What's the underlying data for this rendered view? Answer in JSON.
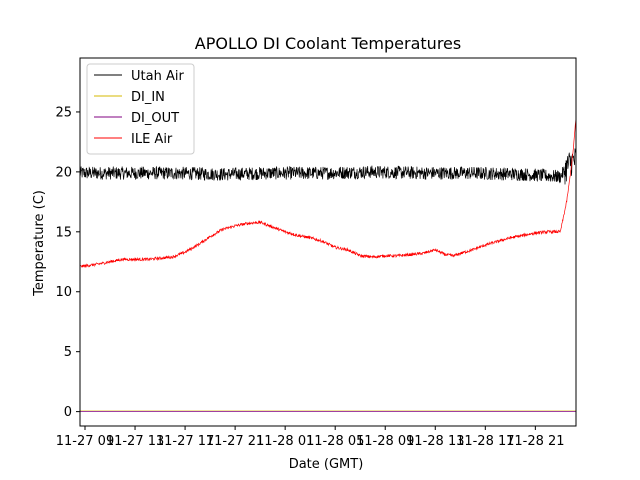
{
  "chart_data": {
    "type": "line",
    "title": "APOLLO DI Coolant Temperatures",
    "xlabel": "Date (GMT)",
    "ylabel": "Temperature (C)",
    "x_domain_hours": [
      6.6,
      46.25
    ],
    "ylim": [
      -1.2,
      29.5
    ],
    "yticks": [
      0,
      5,
      10,
      15,
      20,
      25
    ],
    "xticks": [
      {
        "h": 7,
        "label": "11-27 09"
      },
      {
        "h": 11,
        "label": "11-27 13"
      },
      {
        "h": 15,
        "label": "11-27 17"
      },
      {
        "h": 19,
        "label": "11-27 21"
      },
      {
        "h": 23,
        "label": "11-28 01"
      },
      {
        "h": 27,
        "label": "11-28 05"
      },
      {
        "h": 31,
        "label": "11-28 09"
      },
      {
        "h": 35,
        "label": "11-28 13"
      },
      {
        "h": 39,
        "label": "11-28 17"
      },
      {
        "h": 43,
        "label": "11-28 21"
      }
    ],
    "legend_position": "top-left",
    "series": [
      {
        "name": "Utah Air",
        "color": "#000000",
        "noise": 0.55,
        "x": [
          6.6,
          10,
          14,
          18,
          22,
          26,
          30,
          34,
          38,
          42,
          45.0,
          45.4,
          45.8,
          46.25
        ],
        "y": [
          19.9,
          19.9,
          19.9,
          19.8,
          19.9,
          19.9,
          20.0,
          19.9,
          19.9,
          19.8,
          19.6,
          20.2,
          20.8,
          21.0
        ]
      },
      {
        "name": "DI_IN",
        "color": "#d4b800",
        "noise": 0,
        "x": [
          6.6,
          46.25
        ],
        "y": [
          0.05,
          0.05
        ]
      },
      {
        "name": "DI_OUT",
        "color": "#800080",
        "noise": 0,
        "x": [
          6.6,
          46.25
        ],
        "y": [
          0.02,
          0.02
        ]
      },
      {
        "name": "ILE Air",
        "color": "#ff0000",
        "noise": 0.12,
        "x": [
          6.6,
          8,
          10,
          12,
          14,
          15,
          16,
          17,
          18,
          19,
          20,
          21,
          21.5,
          22,
          23,
          24,
          25,
          26,
          27,
          28,
          29,
          30,
          31,
          32,
          33,
          34,
          35,
          35.8,
          36.5,
          37,
          38,
          39,
          40,
          41,
          42,
          43,
          44,
          45.0,
          45.5,
          45.7,
          46.0,
          46.25
        ],
        "y": [
          12.1,
          12.3,
          12.7,
          12.7,
          12.9,
          13.3,
          13.9,
          14.6,
          15.2,
          15.5,
          15.7,
          15.8,
          15.6,
          15.4,
          15.0,
          14.7,
          14.5,
          14.2,
          13.7,
          13.5,
          13.0,
          12.9,
          13.0,
          13.0,
          13.1,
          13.2,
          13.5,
          13.1,
          13.0,
          13.2,
          13.5,
          13.9,
          14.2,
          14.5,
          14.7,
          14.9,
          15.0,
          15.0,
          17.5,
          19.0,
          21.5,
          24.5
        ]
      }
    ]
  }
}
